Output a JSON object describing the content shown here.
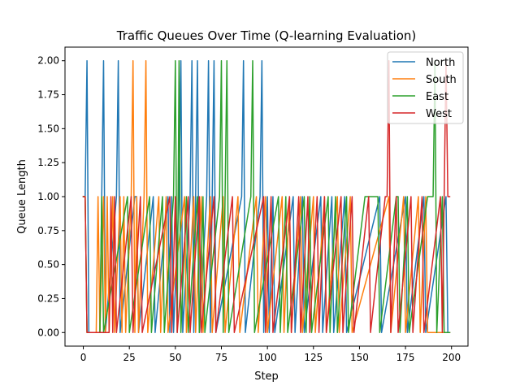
{
  "chart_data": {
    "type": "line",
    "title": "Traffic Queues Over Time (Q-learning Evaluation)",
    "xlabel": "Step",
    "ylabel": "Queue Length",
    "xlim": [
      -9.95,
      208.95
    ],
    "ylim": [
      -0.1,
      2.1
    ],
    "xticks": [
      0,
      25,
      50,
      75,
      100,
      125,
      150,
      175,
      200
    ],
    "yticks": [
      0.0,
      0.25,
      0.5,
      0.75,
      1.0,
      1.25,
      1.5,
      1.75,
      2.0
    ],
    "xtick_labels": [
      "0",
      "25",
      "50",
      "75",
      "100",
      "125",
      "150",
      "175",
      "200"
    ],
    "ytick_labels": [
      "0.00",
      "0.25",
      "0.50",
      "0.75",
      "1.00",
      "1.25",
      "1.50",
      "1.75",
      "2.00"
    ],
    "grid": false,
    "legend_position": "top-right",
    "series": [
      {
        "name": "North",
        "color": "#1f77b4",
        "points": [
          [
            0,
            1
          ],
          [
            1,
            1
          ],
          [
            2,
            2
          ],
          [
            3,
            0
          ],
          [
            9,
            0
          ],
          [
            10,
            1
          ],
          [
            11,
            2
          ],
          [
            12,
            0
          ],
          [
            18,
            1
          ],
          [
            19,
            2
          ],
          [
            20,
            0
          ],
          [
            28,
            1
          ],
          [
            29,
            1
          ],
          [
            30,
            0
          ],
          [
            38,
            1
          ],
          [
            39,
            0
          ],
          [
            46,
            1
          ],
          [
            47,
            0
          ],
          [
            48,
            1
          ],
          [
            49,
            0
          ],
          [
            52,
            1
          ],
          [
            53,
            2
          ],
          [
            54,
            0
          ],
          [
            58,
            1
          ],
          [
            59,
            2
          ],
          [
            60,
            0
          ],
          [
            61,
            1
          ],
          [
            62,
            2
          ],
          [
            63,
            0
          ],
          [
            67,
            1
          ],
          [
            68,
            2
          ],
          [
            69,
            0
          ],
          [
            70,
            1
          ],
          [
            71,
            2
          ],
          [
            72,
            0
          ],
          [
            86,
            1
          ],
          [
            87,
            2
          ],
          [
            88,
            0
          ],
          [
            96,
            1
          ],
          [
            97,
            2
          ],
          [
            98,
            0
          ],
          [
            100,
            1
          ],
          [
            101,
            0
          ],
          [
            103,
            1
          ],
          [
            104,
            0
          ],
          [
            114,
            1
          ],
          [
            115,
            0
          ],
          [
            119,
            1
          ],
          [
            120,
            0
          ],
          [
            129,
            1
          ],
          [
            130,
            0
          ],
          [
            135,
            1
          ],
          [
            136,
            0
          ],
          [
            142,
            1
          ],
          [
            143,
            0
          ],
          [
            161,
            1
          ],
          [
            162,
            0
          ],
          [
            175,
            1
          ],
          [
            176,
            0
          ],
          [
            185,
            1
          ],
          [
            186,
            0
          ],
          [
            197,
            1
          ],
          [
            198,
            0
          ],
          [
            199,
            0
          ]
        ]
      },
      {
        "name": "South",
        "color": "#ff7f0e",
        "points": [
          [
            0,
            1
          ],
          [
            1,
            1
          ],
          [
            2,
            0
          ],
          [
            7,
            0
          ],
          [
            8,
            1
          ],
          [
            9,
            0
          ],
          [
            11,
            1
          ],
          [
            12,
            0
          ],
          [
            13,
            1
          ],
          [
            14,
            0
          ],
          [
            16,
            1
          ],
          [
            17,
            0
          ],
          [
            20,
            1
          ],
          [
            21,
            0
          ],
          [
            22,
            1
          ],
          [
            23,
            0
          ],
          [
            26,
            1
          ],
          [
            27,
            2
          ],
          [
            28,
            0
          ],
          [
            29,
            1
          ],
          [
            30,
            0
          ],
          [
            33,
            1
          ],
          [
            34,
            2
          ],
          [
            35,
            0
          ],
          [
            41,
            1
          ],
          [
            42,
            0
          ],
          [
            45,
            1
          ],
          [
            46,
            0
          ],
          [
            55,
            1
          ],
          [
            56,
            0
          ],
          [
            60,
            1
          ],
          [
            61,
            0
          ],
          [
            64,
            1
          ],
          [
            65,
            0
          ],
          [
            69,
            1
          ],
          [
            70,
            0
          ],
          [
            76,
            1
          ],
          [
            77,
            0
          ],
          [
            84,
            1
          ],
          [
            85,
            0
          ],
          [
            94,
            1
          ],
          [
            95,
            0
          ],
          [
            99,
            1
          ],
          [
            100,
            0
          ],
          [
            108,
            1
          ],
          [
            109,
            0
          ],
          [
            112,
            1
          ],
          [
            113,
            0
          ],
          [
            118,
            1
          ],
          [
            119,
            0
          ],
          [
            125,
            1
          ],
          [
            126,
            0
          ],
          [
            131,
            1
          ],
          [
            132,
            0
          ],
          [
            138,
            1
          ],
          [
            139,
            0
          ],
          [
            145,
            1
          ],
          [
            146,
            0
          ],
          [
            166,
            1
          ],
          [
            167,
            0
          ],
          [
            174,
            1
          ],
          [
            175,
            0
          ],
          [
            182,
            1
          ],
          [
            183,
            0
          ],
          [
            186,
            1
          ],
          [
            187,
            0
          ],
          [
            199,
            0
          ]
        ]
      },
      {
        "name": "East",
        "color": "#2ca02c",
        "points": [
          [
            0,
            1
          ],
          [
            1,
            1
          ],
          [
            2,
            0
          ],
          [
            9,
            0
          ],
          [
            10,
            1
          ],
          [
            11,
            0
          ],
          [
            24,
            1
          ],
          [
            25,
            0
          ],
          [
            36,
            1
          ],
          [
            37,
            0
          ],
          [
            43,
            1
          ],
          [
            44,
            0
          ],
          [
            49,
            1
          ],
          [
            50,
            2
          ],
          [
            51,
            0
          ],
          [
            52,
            2
          ],
          [
            53,
            0
          ],
          [
            56,
            1
          ],
          [
            57,
            0
          ],
          [
            62,
            1
          ],
          [
            63,
            0
          ],
          [
            65,
            1
          ],
          [
            66,
            0
          ],
          [
            74,
            1
          ],
          [
            75,
            2
          ],
          [
            76,
            0
          ],
          [
            77,
            1
          ],
          [
            78,
            2
          ],
          [
            79,
            0
          ],
          [
            91,
            1
          ],
          [
            92,
            2
          ],
          [
            93,
            0
          ],
          [
            106,
            1
          ],
          [
            107,
            0
          ],
          [
            110,
            1
          ],
          [
            111,
            0
          ],
          [
            120,
            1
          ],
          [
            121,
            0
          ],
          [
            123,
            1
          ],
          [
            124,
            0
          ],
          [
            133,
            1
          ],
          [
            134,
            0
          ],
          [
            137,
            1
          ],
          [
            138,
            0
          ],
          [
            143,
            1
          ],
          [
            144,
            0
          ],
          [
            153,
            1
          ],
          [
            160,
            1
          ],
          [
            161,
            0
          ],
          [
            170,
            1
          ],
          [
            171,
            1
          ],
          [
            172,
            0
          ],
          [
            176,
            1
          ],
          [
            177,
            0
          ],
          [
            187,
            1
          ],
          [
            190,
            1
          ],
          [
            191,
            2
          ],
          [
            192,
            0
          ],
          [
            195,
            1
          ],
          [
            196,
            0
          ],
          [
            199,
            0
          ]
        ]
      },
      {
        "name": "West",
        "color": "#d62728",
        "points": [
          [
            0,
            1
          ],
          [
            1,
            1
          ],
          [
            2,
            0
          ],
          [
            14,
            0
          ],
          [
            15,
            1
          ],
          [
            16,
            0
          ],
          [
            17,
            1
          ],
          [
            18,
            0
          ],
          [
            26,
            1
          ],
          [
            27,
            0
          ],
          [
            31,
            1
          ],
          [
            32,
            0
          ],
          [
            47,
            1
          ],
          [
            48,
            0
          ],
          [
            50,
            1
          ],
          [
            51,
            0
          ],
          [
            57,
            1
          ],
          [
            58,
            0
          ],
          [
            63,
            1
          ],
          [
            64,
            0
          ],
          [
            71,
            1
          ],
          [
            72,
            0
          ],
          [
            81,
            1
          ],
          [
            82,
            0
          ],
          [
            98,
            1
          ],
          [
            99,
            0
          ],
          [
            102,
            1
          ],
          [
            103,
            0
          ],
          [
            112,
            1
          ],
          [
            113,
            0
          ],
          [
            117,
            1
          ],
          [
            118,
            0
          ],
          [
            122,
            1
          ],
          [
            123,
            0
          ],
          [
            127,
            1
          ],
          [
            128,
            0
          ],
          [
            131,
            1
          ],
          [
            132,
            0
          ],
          [
            140,
            1
          ],
          [
            141,
            0
          ],
          [
            146,
            1
          ],
          [
            147,
            0
          ],
          [
            155,
            1
          ],
          [
            156,
            0
          ],
          [
            164,
            1
          ],
          [
            165,
            1
          ],
          [
            166,
            2
          ],
          [
            167,
            0
          ],
          [
            170,
            1
          ],
          [
            171,
            0
          ],
          [
            178,
            1
          ],
          [
            179,
            0
          ],
          [
            184,
            1
          ],
          [
            185,
            0
          ],
          [
            194,
            1
          ],
          [
            195,
            0
          ],
          [
            196,
            1
          ],
          [
            197,
            2
          ],
          [
            198,
            1
          ],
          [
            199,
            1
          ]
        ]
      }
    ]
  }
}
